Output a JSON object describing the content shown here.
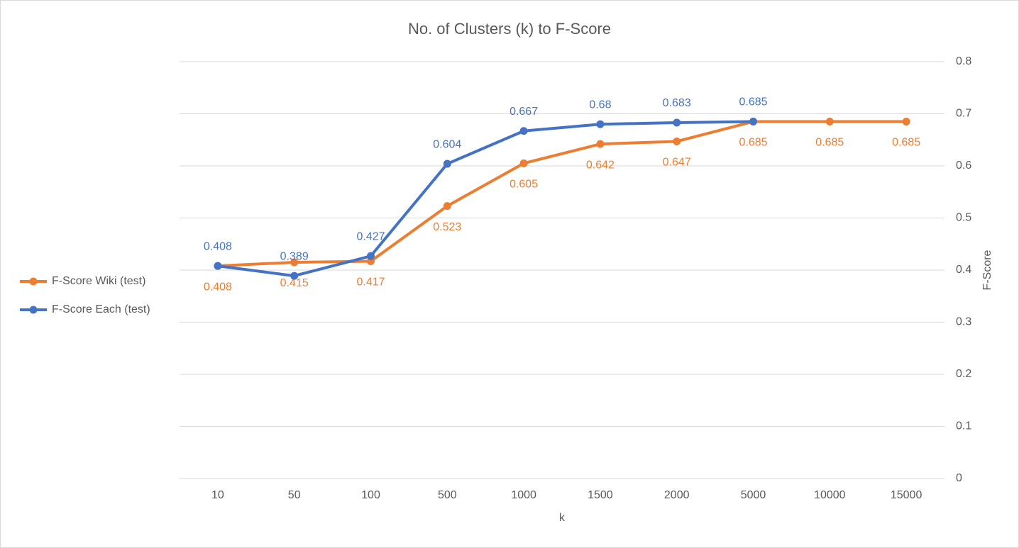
{
  "chart_data": {
    "type": "line",
    "title": "No. of Clusters (k) to F-Score",
    "x_label": "k",
    "y_label": "F-Score",
    "categories": [
      "10",
      "50",
      "100",
      "500",
      "1000",
      "1500",
      "2000",
      "5000",
      "10000",
      "15000"
    ],
    "series": [
      {
        "name": "F-Score Wiki (test)",
        "color": "#ed7d31",
        "label_position": "below",
        "values": [
          0.408,
          0.415,
          0.417,
          0.523,
          0.605,
          0.642,
          0.647,
          0.685,
          0.685,
          0.685
        ]
      },
      {
        "name": "F-Score Each (test)",
        "color": "#4472c4",
        "label_position": "above",
        "values": [
          0.408,
          0.389,
          0.427,
          0.604,
          0.667,
          0.68,
          0.683,
          0.685,
          null,
          null
        ]
      }
    ],
    "ylim": [
      0,
      0.8
    ],
    "yticks": [
      0,
      0.1,
      0.2,
      0.3,
      0.4,
      0.5,
      0.6,
      0.7,
      0.8
    ],
    "y_axis_side": "right",
    "grid": true,
    "legend": "left"
  }
}
